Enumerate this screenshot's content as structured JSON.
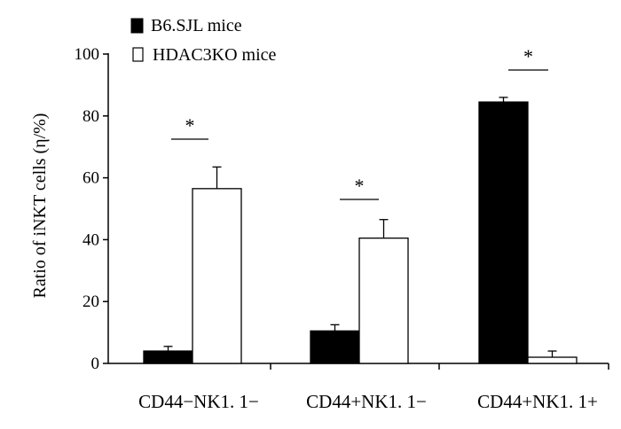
{
  "chart_data": {
    "type": "bar",
    "title": "",
    "xlabel": "",
    "ylabel": "Ratio of iNKT cells (η/%)",
    "ylim": [
      0,
      100
    ],
    "yticks": [
      0,
      20,
      40,
      60,
      80,
      100
    ],
    "categories": [
      "CD44−NK1. 1−",
      "CD44+NK1. 1−",
      "CD44+NK1. 1+"
    ],
    "series": [
      {
        "name": "B6.SJL mice",
        "color": "#000000",
        "fill": "#000000",
        "values": [
          4,
          10.5,
          84.5
        ],
        "errors": [
          1.5,
          2,
          1.5
        ]
      },
      {
        "name": "HDAC3KO mice",
        "color": "#000000",
        "fill": "#ffffff",
        "values": [
          56.5,
          40.5,
          2
        ],
        "errors": [
          7,
          6,
          2
        ]
      }
    ],
    "annotations": [
      {
        "category": 0,
        "text": "*"
      },
      {
        "category": 1,
        "text": "*"
      },
      {
        "category": 2,
        "text": "*"
      }
    ],
    "legend_position": "top-left",
    "grid": false
  }
}
